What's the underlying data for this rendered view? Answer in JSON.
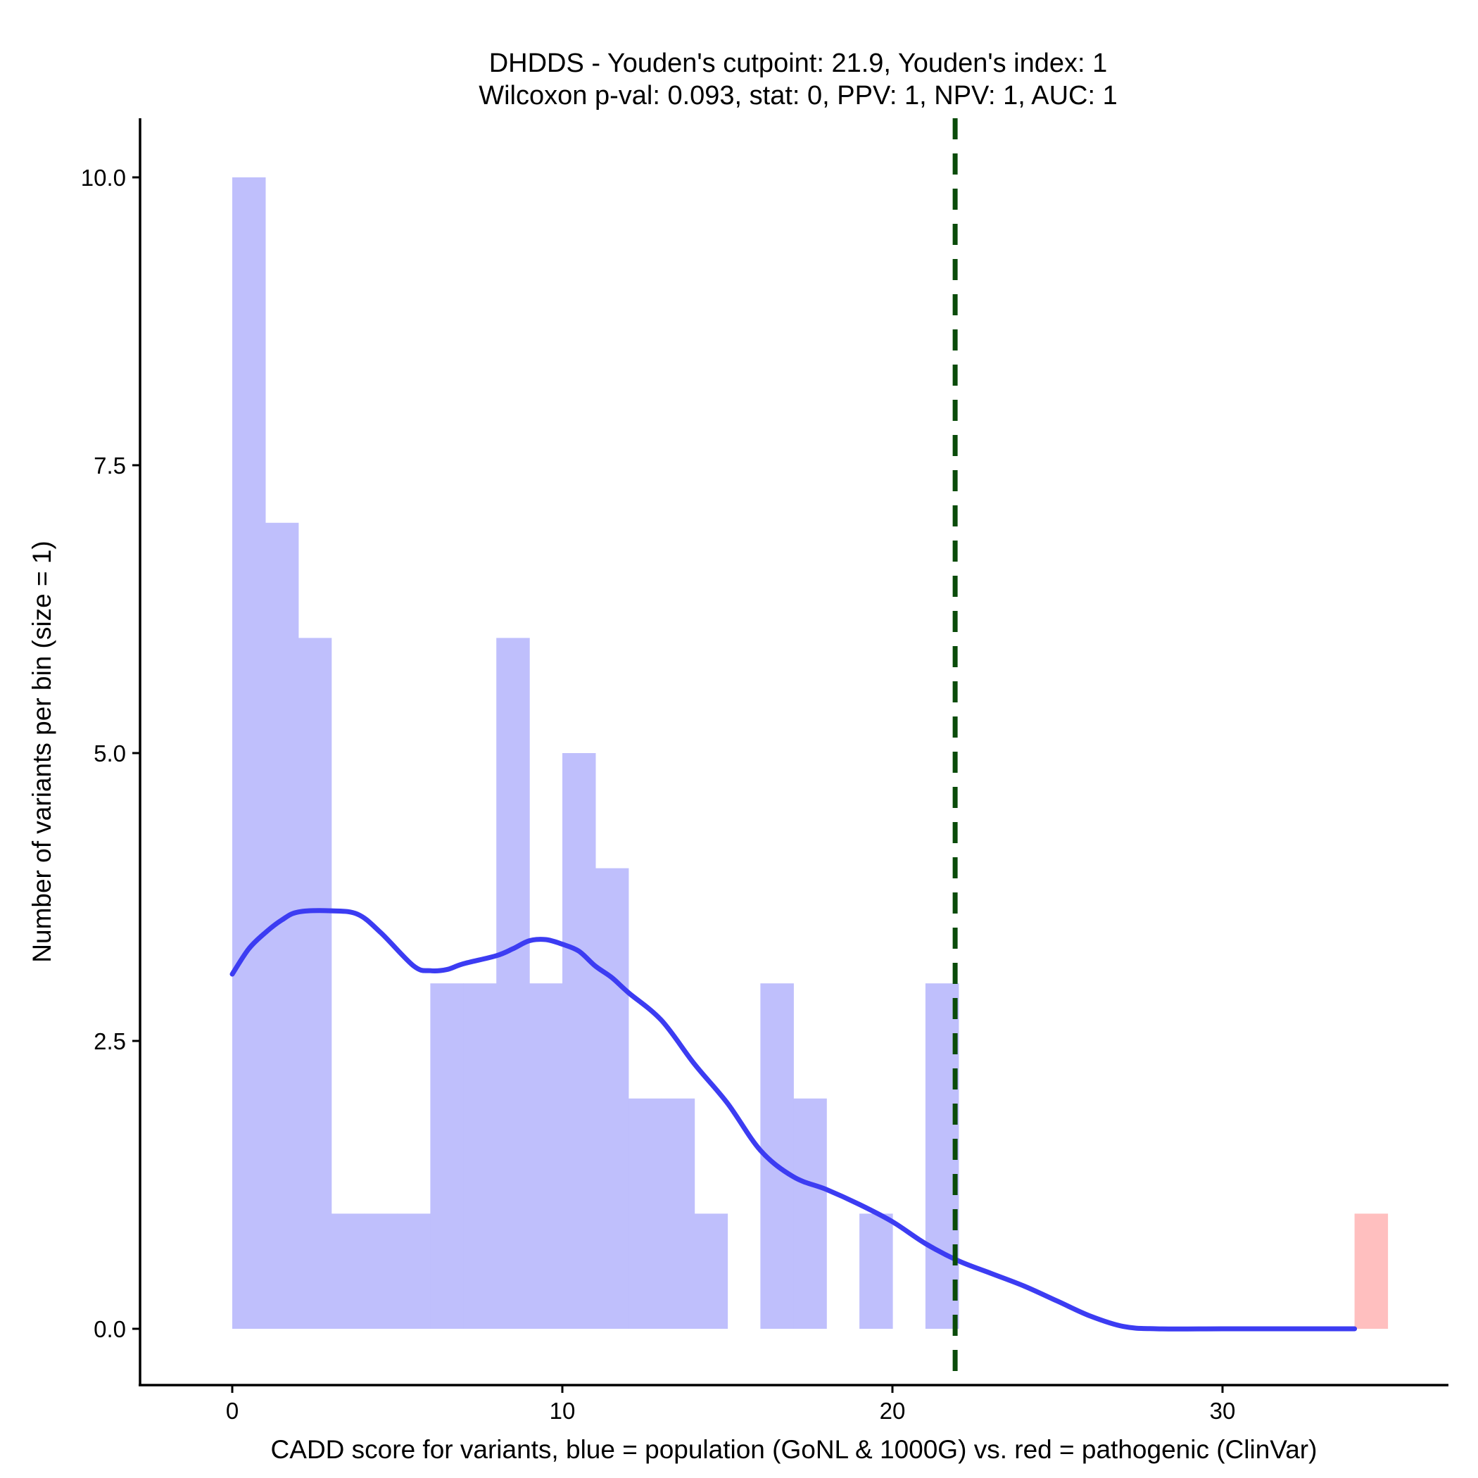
{
  "chart_data": {
    "type": "bar",
    "title_lines": [
      "DHDDS - Youden's cutpoint: 21.9, Youden's index: 1",
      "Wilcoxon p-val: 0.093, stat: 0, PPV: 1, NPV: 1, AUC: 1"
    ],
    "xlabel": "CADD score for variants, blue = population (GoNL & 1000G) vs. red = pathogenic (ClinVar)",
    "ylabel": "Number of variants per bin (size = 1)",
    "xlim": [
      -2.8,
      35.8
    ],
    "ylim": [
      -0.5,
      10.5
    ],
    "x_ticks": [
      0,
      10,
      20,
      30
    ],
    "x_tick_labels": [
      "0",
      "10",
      "20",
      "30"
    ],
    "y_ticks": [
      0,
      2.5,
      5,
      7.5,
      10
    ],
    "y_tick_labels": [
      "0.0",
      "2.5",
      "5.0",
      "7.5",
      "10.0"
    ],
    "bin_size": 1,
    "series": [
      {
        "name": "population (GoNL & 1000G)",
        "color": "#bfbffc",
        "bins": [
          {
            "x": 0,
            "value": 10
          },
          {
            "x": 1,
            "value": 7
          },
          {
            "x": 2,
            "value": 6
          },
          {
            "x": 3,
            "value": 1
          },
          {
            "x": 4,
            "value": 1
          },
          {
            "x": 5,
            "value": 1
          },
          {
            "x": 6,
            "value": 3
          },
          {
            "x": 7,
            "value": 3
          },
          {
            "x": 8,
            "value": 6
          },
          {
            "x": 9,
            "value": 3
          },
          {
            "x": 10,
            "value": 5
          },
          {
            "x": 11,
            "value": 4
          },
          {
            "x": 12,
            "value": 2
          },
          {
            "x": 13,
            "value": 2
          },
          {
            "x": 14,
            "value": 1
          },
          {
            "x": 16,
            "value": 3
          },
          {
            "x": 17,
            "value": 2
          },
          {
            "x": 19,
            "value": 1
          },
          {
            "x": 21,
            "value": 3
          }
        ]
      },
      {
        "name": "pathogenic (ClinVar)",
        "color": "#ffbfbf",
        "bins": [
          {
            "x": 34,
            "value": 1
          }
        ]
      }
    ],
    "density": {
      "color": "#3c3cf2",
      "points": [
        [
          0,
          3.08
        ],
        [
          0.5,
          3.3
        ],
        [
          1,
          3.44
        ],
        [
          1.5,
          3.55
        ],
        [
          2,
          3.62
        ],
        [
          3,
          3.63
        ],
        [
          3.8,
          3.6
        ],
        [
          4.5,
          3.44
        ],
        [
          5.5,
          3.15
        ],
        [
          6,
          3.11
        ],
        [
          6.5,
          3.12
        ],
        [
          7,
          3.17
        ],
        [
          8,
          3.24
        ],
        [
          8.5,
          3.3
        ],
        [
          9,
          3.37
        ],
        [
          9.5,
          3.38
        ],
        [
          10,
          3.34
        ],
        [
          10.5,
          3.28
        ],
        [
          11,
          3.15
        ],
        [
          11.5,
          3.05
        ],
        [
          12,
          2.92
        ],
        [
          13,
          2.68
        ],
        [
          14,
          2.3
        ],
        [
          15,
          1.96
        ],
        [
          16,
          1.55
        ],
        [
          17,
          1.32
        ],
        [
          18,
          1.21
        ],
        [
          19,
          1.08
        ],
        [
          20,
          0.93
        ],
        [
          21,
          0.74
        ],
        [
          22,
          0.59
        ],
        [
          23,
          0.48
        ],
        [
          24,
          0.37
        ],
        [
          25,
          0.24
        ],
        [
          26,
          0.11
        ],
        [
          27,
          0.02
        ],
        [
          28,
          0
        ],
        [
          30,
          0
        ],
        [
          32,
          0
        ],
        [
          34,
          0
        ]
      ]
    },
    "cutpoint": {
      "x": 21.9,
      "color": "#0a4b0a"
    }
  }
}
